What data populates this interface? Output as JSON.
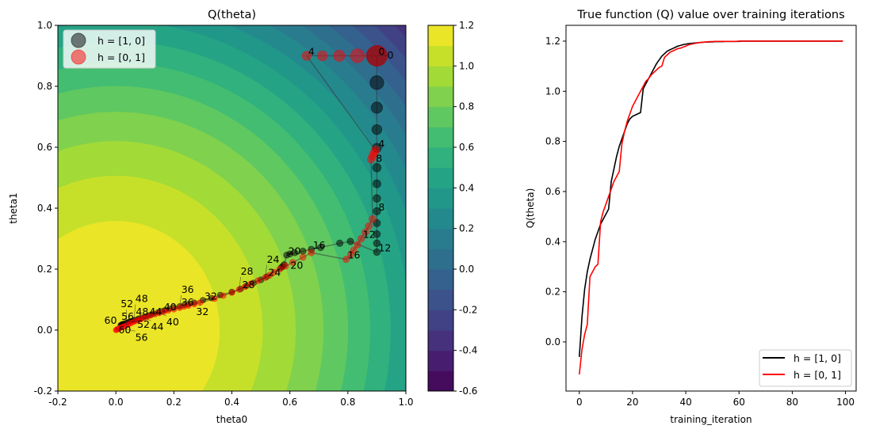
{
  "chart_data": [
    {
      "type": "contour",
      "title": "Q(theta)",
      "xlabel": "theta0",
      "ylabel": "theta1",
      "xlim": [
        -0.2,
        1.0
      ],
      "ylim": [
        -0.2,
        1.0
      ],
      "xticks": [
        "-0.2",
        "0.0",
        "0.2",
        "0.4",
        "0.6",
        "0.8",
        "1.0"
      ],
      "yticks": [
        "-0.2",
        "0.0",
        "0.2",
        "0.4",
        "0.6",
        "0.8",
        "1.0"
      ],
      "colormap": "viridis",
      "levels_range": [
        -0.6,
        1.2
      ],
      "level_step": 0.1,
      "colorbar_ticks": [
        "-0.6",
        "-0.4",
        "-0.2",
        "0.0",
        "0.2",
        "0.4",
        "0.6",
        "0.8",
        "1.0",
        "1.2"
      ],
      "legend_placement": "upper-left",
      "annotation_every": 4,
      "series": [
        {
          "name": "h = [1, 0]",
          "color": "#000000",
          "points": [
            [
              0.9,
              0.9
            ],
            [
              0.9,
              0.812
            ],
            [
              0.9,
              0.73
            ],
            [
              0.9,
              0.658
            ],
            [
              0.9,
              0.598
            ],
            [
              0.9,
              0.533
            ],
            [
              0.9,
              0.48
            ],
            [
              0.9,
              0.432
            ],
            [
              0.9,
              0.39
            ],
            [
              0.9,
              0.351
            ],
            [
              0.9,
              0.315
            ],
            [
              0.9,
              0.285
            ],
            [
              0.9,
              0.256
            ],
            [
              0.809,
              0.291
            ],
            [
              0.772,
              0.285
            ],
            [
              0.706,
              0.271
            ],
            [
              0.674,
              0.265
            ],
            [
              0.645,
              0.259
            ],
            [
              0.617,
              0.254
            ],
            [
              0.6,
              0.25
            ],
            [
              0.589,
              0.246
            ],
            [
              0.58,
              0.215
            ],
            [
              0.575,
              0.209
            ],
            [
              0.57,
              0.205
            ],
            [
              0.52,
              0.175
            ],
            [
              0.5,
              0.165
            ],
            [
              0.475,
              0.155
            ],
            [
              0.45,
              0.145
            ],
            [
              0.43,
              0.135
            ],
            [
              0.4,
              0.125
            ],
            [
              0.36,
              0.115
            ],
            [
              0.33,
              0.105
            ],
            [
              0.3,
              0.098
            ],
            [
              0.27,
              0.09
            ],
            [
              0.25,
              0.085
            ],
            [
              0.235,
              0.082
            ],
            [
              0.22,
              0.078
            ],
            [
              0.2,
              0.074
            ],
            [
              0.185,
              0.07
            ],
            [
              0.17,
              0.066
            ],
            [
              0.16,
              0.062
            ],
            [
              0.145,
              0.058
            ],
            [
              0.13,
              0.054
            ],
            [
              0.12,
              0.05
            ],
            [
              0.11,
              0.047
            ],
            [
              0.1,
              0.044
            ],
            [
              0.09,
              0.041
            ],
            [
              0.08,
              0.038
            ],
            [
              0.075,
              0.036
            ],
            [
              0.065,
              0.033
            ],
            [
              0.058,
              0.031
            ],
            [
              0.05,
              0.029
            ],
            [
              0.045,
              0.027
            ],
            [
              0.04,
              0.025
            ],
            [
              0.035,
              0.023
            ],
            [
              0.03,
              0.022
            ],
            [
              0.025,
              0.02
            ],
            [
              0.022,
              0.019
            ],
            [
              0.02,
              0.018
            ],
            [
              0.018,
              0.017
            ],
            [
              0.016,
              0.016
            ]
          ]
        },
        {
          "name": "h = [0, 1]",
          "color": "#e41a1c",
          "points": [
            [
              0.9,
              0.9
            ],
            [
              0.833,
              0.9
            ],
            [
              0.77,
              0.9
            ],
            [
              0.712,
              0.9
            ],
            [
              0.658,
              0.9
            ],
            [
              0.895,
              0.59
            ],
            [
              0.89,
              0.58
            ],
            [
              0.885,
              0.57
            ],
            [
              0.88,
              0.56
            ],
            [
              0.885,
              0.364
            ],
            [
              0.872,
              0.341
            ],
            [
              0.86,
              0.321
            ],
            [
              0.846,
              0.3
            ],
            [
              0.833,
              0.28
            ],
            [
              0.82,
              0.262
            ],
            [
              0.81,
              0.248
            ],
            [
              0.794,
              0.232
            ],
            [
              0.674,
              0.254
            ],
            [
              0.645,
              0.239
            ],
            [
              0.61,
              0.222
            ],
            [
              0.585,
              0.21
            ],
            [
              0.565,
              0.2
            ],
            [
              0.545,
              0.19
            ],
            [
              0.53,
              0.18
            ],
            [
              0.515,
              0.172
            ],
            [
              0.49,
              0.162
            ],
            [
              0.465,
              0.152
            ],
            [
              0.445,
              0.142
            ],
            [
              0.425,
              0.133
            ],
            [
              0.4,
              0.123
            ],
            [
              0.37,
              0.113
            ],
            [
              0.34,
              0.103
            ],
            [
              0.29,
              0.09
            ],
            [
              0.27,
              0.085
            ],
            [
              0.25,
              0.08
            ],
            [
              0.235,
              0.077
            ],
            [
              0.22,
              0.073
            ],
            [
              0.2,
              0.068
            ],
            [
              0.18,
              0.064
            ],
            [
              0.165,
              0.06
            ],
            [
              0.15,
              0.056
            ],
            [
              0.135,
              0.052
            ],
            [
              0.12,
              0.048
            ],
            [
              0.108,
              0.044
            ],
            [
              0.097,
              0.04
            ],
            [
              0.087,
              0.036
            ],
            [
              0.078,
              0.033
            ],
            [
              0.07,
              0.03
            ],
            [
              0.062,
              0.027
            ],
            [
              0.055,
              0.024
            ],
            [
              0.048,
              0.021
            ],
            [
              0.042,
              0.018
            ],
            [
              0.036,
              0.015
            ],
            [
              0.03,
              0.013
            ],
            [
              0.025,
              0.011
            ],
            [
              0.02,
              0.009
            ],
            [
              0.015,
              0.007
            ],
            [
              0.01,
              0.005
            ],
            [
              0.006,
              0.003
            ],
            [
              0.003,
              0.001
            ],
            [
              0.0,
              0.0
            ]
          ]
        }
      ]
    },
    {
      "type": "line",
      "title": "True function (Q) value over training iterations",
      "xlabel": "training_iteration",
      "ylabel": "Q(theta)",
      "xlim": [
        -5,
        104
      ],
      "ylim": [
        -0.196,
        1.263
      ],
      "xticks": [
        "0",
        "20",
        "40",
        "60",
        "80",
        "100"
      ],
      "yticks": [
        "0.0",
        "0.2",
        "0.4",
        "0.6",
        "0.8",
        "1.0",
        "1.2"
      ],
      "legend_placement": "lower-right",
      "series": [
        {
          "name": "h = [1, 0]",
          "color": "#000000",
          "values": [
            -0.06,
            0.1,
            0.21,
            0.28,
            0.33,
            0.37,
            0.41,
            0.44,
            0.47,
            0.49,
            0.51,
            0.53,
            0.64,
            0.69,
            0.74,
            0.78,
            0.81,
            0.84,
            0.87,
            0.89,
            0.9,
            0.905,
            0.91,
            0.915,
            1.01,
            1.03,
            1.05,
            1.07,
            1.09,
            1.11,
            1.125,
            1.14,
            1.15,
            1.16,
            1.165,
            1.17,
            1.175,
            1.18,
            1.183,
            1.186,
            1.188,
            1.19,
            1.191,
            1.192,
            1.193,
            1.194,
            1.195,
            1.196,
            1.196,
            1.197,
            1.197,
            1.198,
            1.198,
            1.198,
            1.198,
            1.199,
            1.199,
            1.199,
            1.199,
            1.199,
            1.199,
            1.2,
            1.2,
            1.2,
            1.2,
            1.2,
            1.2,
            1.2,
            1.2,
            1.2,
            1.2,
            1.2,
            1.2,
            1.2,
            1.2,
            1.2,
            1.2,
            1.2,
            1.2,
            1.2,
            1.2,
            1.2,
            1.2,
            1.2,
            1.2,
            1.2,
            1.2,
            1.2,
            1.2,
            1.2,
            1.2,
            1.2,
            1.2,
            1.2,
            1.2,
            1.2,
            1.2,
            1.2,
            1.2,
            1.2
          ]
        },
        {
          "name": "h = [0, 1]",
          "color": "#ff0000",
          "values": [
            -0.13,
            -0.03,
            0.03,
            0.07,
            0.26,
            0.28,
            0.3,
            0.31,
            0.48,
            0.52,
            0.55,
            0.58,
            0.61,
            0.64,
            0.66,
            0.68,
            0.79,
            0.84,
            0.88,
            0.91,
            0.94,
            0.96,
            0.98,
            1.0,
            1.02,
            1.04,
            1.05,
            1.065,
            1.075,
            1.085,
            1.095,
            1.1,
            1.135,
            1.145,
            1.155,
            1.16,
            1.165,
            1.17,
            1.172,
            1.176,
            1.18,
            1.185,
            1.188,
            1.19,
            1.192,
            1.194,
            1.195,
            1.196,
            1.197,
            1.198,
            1.198,
            1.199,
            1.199,
            1.199,
            1.199,
            1.199,
            1.199,
            1.199,
            1.199,
            1.199,
            1.2,
            1.2,
            1.2,
            1.2,
            1.2,
            1.2,
            1.2,
            1.2,
            1.2,
            1.2,
            1.2,
            1.2,
            1.2,
            1.2,
            1.2,
            1.2,
            1.2,
            1.2,
            1.2,
            1.2,
            1.2,
            1.2,
            1.2,
            1.2,
            1.2,
            1.2,
            1.2,
            1.2,
            1.2,
            1.2,
            1.2,
            1.2,
            1.2,
            1.2,
            1.2,
            1.2,
            1.2,
            1.2,
            1.2,
            1.2
          ]
        }
      ]
    }
  ]
}
